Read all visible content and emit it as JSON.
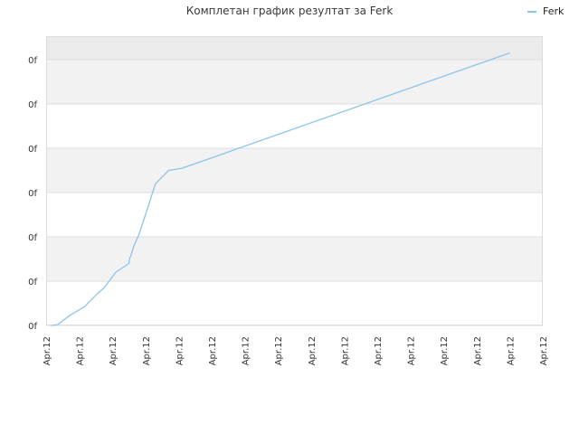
{
  "chart_data": {
    "type": "line",
    "title": "Комплетан график резултат за Ferk",
    "legend_position": "top-right",
    "grid": true,
    "line_color": "#8cc4ec",
    "band_colors": [
      "#f2f2f2",
      "#ffffff"
    ],
    "top_band_color": "#ebebeb",
    "series": [
      {
        "name": "Ferk",
        "x": [
          0.15,
          0.35,
          0.7,
          1.15,
          1.55,
          1.75,
          2.1,
          2.5,
          2.52,
          2.57,
          2.65,
          2.8,
          3.0,
          3.3,
          3.7,
          4.1,
          14.0
        ],
        "y": [
          0.0,
          0.02,
          0.22,
          0.42,
          0.72,
          0.85,
          1.2,
          1.4,
          1.5,
          1.6,
          1.8,
          2.05,
          2.5,
          3.2,
          3.5,
          3.55,
          6.15
        ]
      }
    ],
    "x_tick_labels": [
      "Apr.12",
      "Apr.12",
      "Apr.12",
      "Apr.12",
      "Apr.12",
      "Apr.12",
      "Apr.12",
      "Apr.12",
      "Apr.12",
      "Apr.12",
      "Apr.12",
      "Apr.12",
      "Apr.12",
      "Apr.12",
      "Apr.12",
      "Apr.12"
    ],
    "y_tick_labels": [
      "0f",
      "0f",
      "0f",
      "0f",
      "0f",
      "0f",
      "0f"
    ],
    "xlim": [
      0,
      15
    ],
    "ylim": [
      0,
      6.5
    ]
  }
}
